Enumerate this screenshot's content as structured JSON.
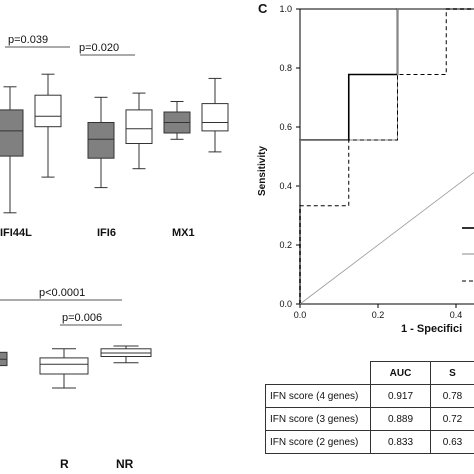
{
  "chart_data": [
    {
      "type": "boxplot",
      "categories": [
        "IFI44L",
        "IFI6",
        "MX1"
      ],
      "ylim": [
        0,
        10
      ],
      "series": [
        {
          "color": "#808080",
          "boxes": [
            {
              "min": 1.2,
              "q1": 3.9,
              "median": 5.1,
              "q3": 6.1,
              "max": 7.2
            },
            {
              "min": 2.4,
              "q1": 3.8,
              "median": 4.7,
              "q3": 5.5,
              "max": 6.7
            },
            {
              "min": 4.7,
              "q1": 5.0,
              "median": 5.5,
              "q3": 6.0,
              "max": 6.5
            }
          ]
        },
        {
          "color": "#ffffff",
          "boxes": [
            {
              "min": 2.9,
              "q1": 5.3,
              "median": 5.8,
              "q3": 6.8,
              "max": 7.8
            },
            {
              "min": 3.3,
              "q1": 4.5,
              "median": 5.2,
              "q3": 6.1,
              "max": 6.9
            },
            {
              "min": 4.1,
              "q1": 5.1,
              "median": 5.5,
              "q3": 6.4,
              "max": 7.6
            }
          ]
        }
      ],
      "annotations": [
        {
          "text": "p=0.039",
          "from": "IFI44L",
          "to": "IFI44L"
        },
        {
          "text": "p=0.020",
          "from": "IFI6",
          "to": "IFI6"
        }
      ]
    },
    {
      "type": "boxplot",
      "categories": [
        "",
        "R",
        "NR"
      ],
      "ylim": [
        0,
        10
      ],
      "boxes": [
        {
          "category": "",
          "color": "#808080",
          "q1": 4.2,
          "median": 5.1,
          "q3": 6.1
        },
        {
          "category": "R",
          "color": "#ffffff",
          "min": 1.0,
          "q1": 3.0,
          "median": 4.4,
          "q3": 5.3,
          "max": 6.6
        },
        {
          "category": "NR",
          "color": "#ffffff",
          "min": 4.6,
          "q1": 5.5,
          "median": 6.0,
          "q3": 6.6,
          "max": 7.0
        }
      ],
      "annotations": [
        {
          "text": "p<0.0001",
          "from": "",
          "to": "NR"
        },
        {
          "text": "p=0.006",
          "from": "R",
          "to": "NR"
        }
      ]
    },
    {
      "type": "line",
      "panel_label": "C",
      "xlabel": "1 - Specifici",
      "ylabel": "Sensitivity",
      "xlim": [
        0,
        1
      ],
      "ylim": [
        0,
        1
      ],
      "x_ticks": [
        "0.0",
        "0.2",
        "0.4"
      ],
      "y_ticks": [
        "0.0",
        "0.2",
        "0.4",
        "0.6",
        "0.8",
        "1.0"
      ],
      "series": [
        {
          "style": "solid-thick",
          "points": [
            [
              0,
              0
            ],
            [
              0,
              0.556
            ],
            [
              0.125,
              0.556
            ],
            [
              0.125,
              0.778
            ],
            [
              0.25,
              0.778
            ],
            [
              0.25,
              1.0
            ],
            [
              1,
              1.0
            ]
          ]
        },
        {
          "style": "solid-thin",
          "points": [
            [
              0,
              0
            ],
            [
              0,
              0.556
            ],
            [
              0.25,
              0.556
            ],
            [
              0.25,
              1.0
            ],
            [
              1,
              1.0
            ]
          ]
        },
        {
          "style": "dashed",
          "points": [
            [
              0,
              0
            ],
            [
              0,
              0.333
            ],
            [
              0.125,
              0.333
            ],
            [
              0.125,
              0.556
            ],
            [
              0.25,
              0.556
            ],
            [
              0.25,
              0.778
            ],
            [
              0.375,
              0.778
            ],
            [
              0.375,
              1.0
            ],
            [
              1,
              1.0
            ]
          ]
        },
        {
          "style": "reference",
          "points": [
            [
              0,
              0
            ],
            [
              1,
              1
            ]
          ]
        }
      ]
    },
    {
      "type": "table",
      "columns": [
        "",
        "AUC",
        "S"
      ],
      "rows": [
        [
          "IFN score (4 genes)",
          "0.917",
          "0.78"
        ],
        [
          "IFN score (3 genes)",
          "0.889",
          "0.72"
        ],
        [
          "IFN score (2 genes)",
          "0.833",
          "0.63"
        ]
      ]
    }
  ]
}
